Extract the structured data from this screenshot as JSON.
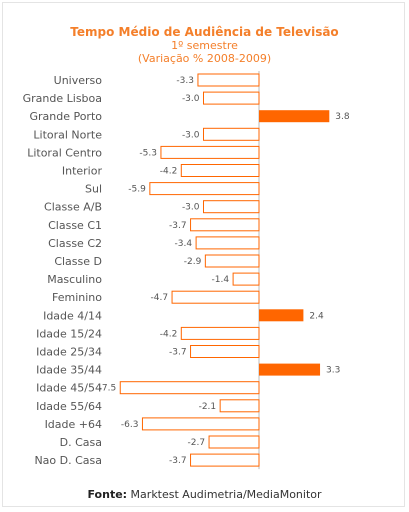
{
  "chart_data": {
    "type": "bar",
    "orientation": "horizontal",
    "title": "Tempo Médio de Audiência  de Televisão",
    "subtitle": "1º semestre",
    "subtitle2": "(Variação % 2008-2009)",
    "categories": [
      "Universo",
      "Grande Lisboa",
      "Grande Porto",
      "Litoral Norte",
      "Litoral Centro",
      "Interior",
      "Sul",
      "Classe A/B",
      "Classe C1",
      "Classe C2",
      "Classe D",
      "Masculino",
      "Feminino",
      "Idade 4/14",
      "Idade 15/24",
      "Idade 25/34",
      "Idade 35/44",
      "Idade 45/54",
      "Idade 55/64",
      "Idade +64",
      "D. Casa",
      "Nao D. Casa"
    ],
    "values": [
      -3.3,
      -3.0,
      3.8,
      -3.0,
      -5.3,
      -4.2,
      -5.9,
      -3.0,
      -3.7,
      -3.4,
      -2.9,
      -1.4,
      -4.7,
      2.4,
      -4.2,
      -3.7,
      3.3,
      -7.5,
      -2.1,
      -6.3,
      -2.7,
      -3.7
    ],
    "value_labels": [
      "-3.3",
      "-3.0",
      "3.8",
      "-3.0",
      "-5.3",
      "-4.2",
      "-5.9",
      "-3.0",
      "-3.7",
      "-3.4",
      "-2.9",
      "-1.4",
      "-4.7",
      "2.4",
      "-4.2",
      "-3.7",
      "3.3",
      "-7.5",
      "-2.1",
      "-6.3",
      "-2.7",
      "-3.7"
    ],
    "xlim": [
      -7.5,
      3.8
    ],
    "grid": false,
    "colors": {
      "positive": "#ff6600",
      "negative_fill": "#ffffff",
      "negative_stroke": "#ff6600",
      "title": "#f47f2a"
    }
  },
  "source": {
    "label": "Fonte:",
    "text": " Marktest Audimetria/MediaMonitor"
  }
}
